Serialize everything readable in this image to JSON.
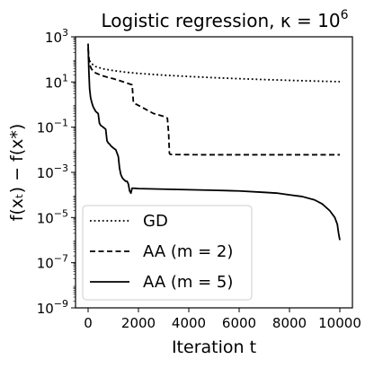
{
  "chart_data": {
    "type": "line",
    "title": "Logistic regression, κ = 10",
    "title_sup": "6",
    "xlabel": "Iteration t",
    "ylabel": "f(xₜ) − f(x*)",
    "x_ticks": [
      0,
      2000,
      4000,
      6000,
      8000,
      10000
    ],
    "y_ticks": [
      {
        "value": 1000.0,
        "base": "10",
        "exp": "3"
      },
      {
        "value": 10.0,
        "base": "10",
        "exp": "1"
      },
      {
        "value": 0.1,
        "base": "10",
        "exp": "−1"
      },
      {
        "value": 0.001,
        "base": "10",
        "exp": "−3"
      },
      {
        "value": 1e-05,
        "base": "10",
        "exp": "−5"
      },
      {
        "value": 1e-07,
        "base": "10",
        "exp": "−7"
      },
      {
        "value": 1e-09,
        "base": "10",
        "exp": "−9"
      }
    ],
    "xlim": [
      -500,
      10500
    ],
    "ylim": [
      1e-09,
      1000.0
    ],
    "yscale": "log",
    "grid": false,
    "legend_position": "lower-left",
    "line_color": "#000000",
    "series": [
      {
        "name": "GD",
        "dash": "dotted",
        "x": [
          0,
          100,
          300,
          600,
          1000,
          1500,
          2000,
          3000,
          4000,
          5000,
          6000,
          7000,
          8000,
          9000,
          10000
        ],
        "y": [
          130,
          70,
          48,
          38,
          32,
          27,
          24,
          20,
          17.5,
          15.5,
          14,
          12.8,
          11.8,
          11,
          10.3
        ]
      },
      {
        "name": "AA (m = 2)",
        "dash": "dashed",
        "x": [
          0,
          60,
          120,
          200,
          300,
          500,
          700,
          1000,
          1300,
          1600,
          1750,
          1800,
          2200,
          2600,
          2800,
          3000,
          3150,
          3200,
          3230,
          3260,
          3300,
          3500,
          4500,
          5500,
          6500,
          7500,
          8500,
          9500,
          10000
        ],
        "y": [
          300,
          60,
          40,
          30,
          25,
          20,
          17,
          14,
          11,
          8.5,
          7.5,
          1.2,
          0.7,
          0.4,
          0.35,
          0.3,
          0.25,
          0.05,
          0.007,
          0.0063,
          0.0062,
          0.0061,
          0.006,
          0.006,
          0.006,
          0.006,
          0.006,
          0.006,
          0.006
        ]
      },
      {
        "name": "AA (m = 5)",
        "dash": "solid",
        "x": [
          0,
          30,
          60,
          100,
          150,
          200,
          300,
          400,
          450,
          500,
          600,
          700,
          750,
          800,
          850,
          900,
          1000,
          1100,
          1200,
          1250,
          1300,
          1350,
          1400,
          1500,
          1550,
          1600,
          1650,
          1700,
          1750,
          2000,
          3000,
          4000,
          5000,
          6000,
          7000,
          7500,
          8000,
          8500,
          9000,
          9300,
          9600,
          9800,
          9900,
          9950,
          10000
        ],
        "y": [
          500,
          30,
          5,
          2,
          1.2,
          0.8,
          0.5,
          0.4,
          0.15,
          0.12,
          0.1,
          0.08,
          0.025,
          0.02,
          0.018,
          0.015,
          0.012,
          0.01,
          0.005,
          0.0015,
          0.0008,
          0.0006,
          0.0005,
          0.0004,
          0.0004,
          0.0003,
          0.00015,
          0.00012,
          0.0002,
          0.00019,
          0.00018,
          0.00017,
          0.00016,
          0.00015,
          0.00013,
          0.00012,
          0.0001,
          8.5e-05,
          6e-05,
          4e-05,
          2e-05,
          1e-05,
          5e-06,
          2e-06,
          1e-06
        ]
      }
    ]
  }
}
